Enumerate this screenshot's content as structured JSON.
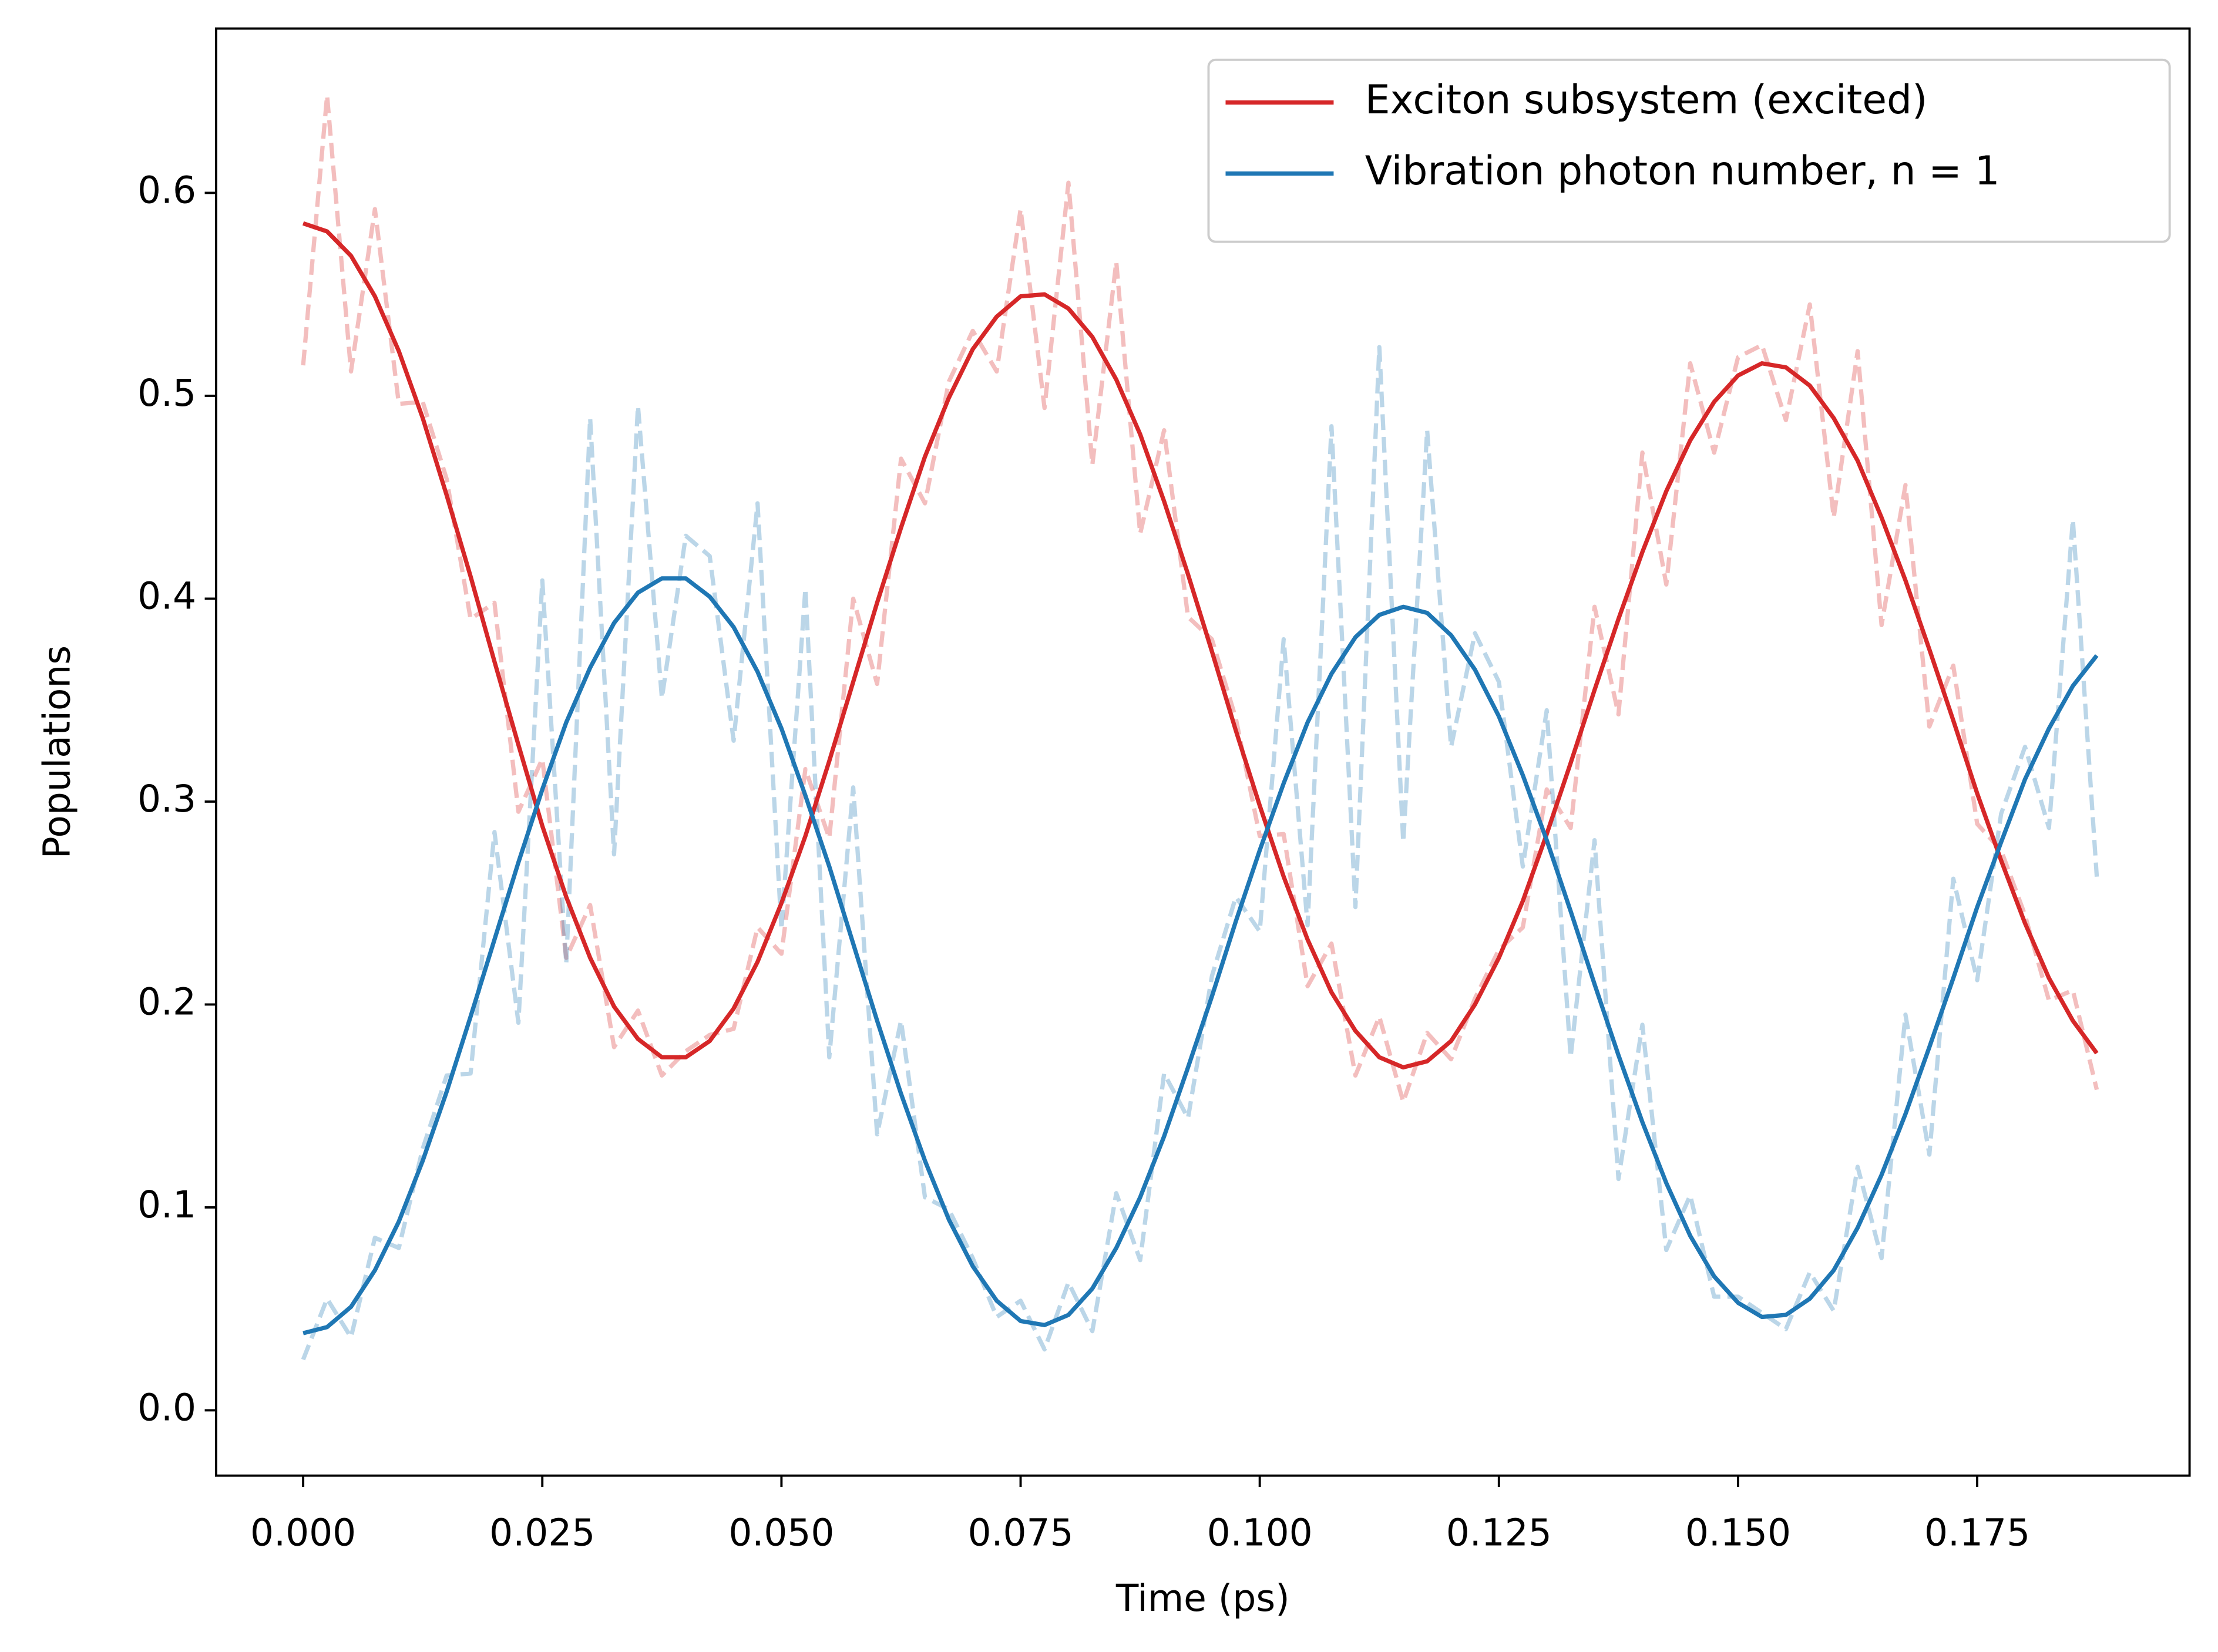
{
  "chart_data": {
    "type": "line",
    "xlabel": "Time (ps)",
    "ylabel": "Populations",
    "xlim": [
      -0.0091,
      0.1972
    ],
    "ylim": [
      -0.0322,
      0.681
    ],
    "xticks": [
      {
        "value": 0,
        "label": "0.000"
      },
      0.025,
      {
        "value": 0.05,
        "label": "0.050"
      },
      0.075,
      {
        "value": 0.1,
        "label": "0.100"
      },
      0.125,
      {
        "value": 0.15,
        "label": "0.150"
      },
      0.175
    ],
    "yticks": [
      {
        "value": 0,
        "label": "0.0"
      },
      0.1,
      0.2,
      0.3,
      0.4,
      0.5,
      0.6
    ],
    "grid": false,
    "legend_loc": "upper right",
    "x": [
      0,
      0.0025,
      0.005,
      0.0075,
      0.01,
      0.0125,
      0.015,
      0.0175,
      0.02,
      0.0225,
      0.025,
      0.0275,
      0.03,
      0.0325,
      0.035,
      0.0375,
      0.04,
      0.0425,
      0.045,
      0.0475,
      0.05,
      0.0525,
      0.055,
      0.0575,
      0.06,
      0.0625,
      0.065,
      0.0675,
      0.07,
      0.0725,
      0.075,
      0.0775,
      0.08,
      0.0825,
      0.085,
      0.0875,
      0.09,
      0.0925,
      0.095,
      0.0975,
      0.1,
      0.1025,
      0.105,
      0.1075,
      0.11,
      0.1125,
      0.115,
      0.1175,
      0.12,
      0.1225,
      0.125,
      0.1275,
      0.13,
      0.1325,
      0.135,
      0.1375,
      0.14,
      0.1425,
      0.145,
      0.1475,
      0.15,
      0.1525,
      0.155,
      0.1575,
      0.16,
      0.1625,
      0.165,
      0.1675,
      0.17,
      0.1725,
      0.175,
      0.1775,
      0.18,
      0.1825,
      0.185,
      0.1875
    ],
    "series": [
      {
        "color": "#d62728",
        "linestyle": "dashed",
        "alpha": 0.3,
        "values": [
          0.515,
          0.648,
          0.512,
          0.592,
          0.496,
          0.497,
          0.459,
          0.39,
          0.398,
          0.295,
          0.321,
          0.223,
          0.249,
          0.179,
          0.197,
          0.165,
          0.177,
          0.185,
          0.188,
          0.238,
          0.225,
          0.316,
          0.282,
          0.4,
          0.358,
          0.469,
          0.447,
          0.507,
          0.532,
          0.512,
          0.592,
          0.494,
          0.605,
          0.466,
          0.566,
          0.432,
          0.483,
          0.391,
          0.38,
          0.341,
          0.283,
          0.284,
          0.209,
          0.23,
          0.165,
          0.194,
          0.152,
          0.186,
          0.173,
          0.203,
          0.227,
          0.238,
          0.306,
          0.287,
          0.396,
          0.343,
          0.472,
          0.407,
          0.516,
          0.472,
          0.519,
          0.525,
          0.488,
          0.545,
          0.44,
          0.522,
          0.387,
          0.456,
          0.337,
          0.367,
          0.289,
          0.276,
          0.244,
          0.202,
          0.207,
          0.158
        ]
      },
      {
        "color": "#1f77b4",
        "linestyle": "dashed",
        "alpha": 0.3,
        "values": [
          0.025,
          0.055,
          0.036,
          0.085,
          0.08,
          0.129,
          0.165,
          0.166,
          0.285,
          0.191,
          0.409,
          0.22,
          0.489,
          0.274,
          0.495,
          0.351,
          0.431,
          0.421,
          0.33,
          0.447,
          0.237,
          0.405,
          0.174,
          0.307,
          0.136,
          0.192,
          0.105,
          0.099,
          0.075,
          0.046,
          0.054,
          0.03,
          0.063,
          0.039,
          0.107,
          0.074,
          0.166,
          0.144,
          0.214,
          0.253,
          0.236,
          0.38,
          0.239,
          0.485,
          0.248,
          0.524,
          0.28,
          0.483,
          0.327,
          0.383,
          0.359,
          0.268,
          0.345,
          0.174,
          0.281,
          0.114,
          0.19,
          0.079,
          0.106,
          0.056,
          0.056,
          0.048,
          0.04,
          0.068,
          0.049,
          0.12,
          0.075,
          0.195,
          0.126,
          0.262,
          0.212,
          0.294,
          0.327,
          0.287,
          0.439,
          0.263
        ]
      },
      {
        "name": "Exciton subsystem (excited)",
        "color": "#d62728",
        "linestyle": "solid",
        "alpha": 1,
        "values": [
          0.585,
          0.581,
          0.569,
          0.549,
          0.522,
          0.489,
          0.451,
          0.411,
          0.369,
          0.328,
          0.288,
          0.253,
          0.223,
          0.199,
          0.183,
          0.174,
          0.174,
          0.182,
          0.198,
          0.221,
          0.25,
          0.283,
          0.32,
          0.359,
          0.398,
          0.435,
          0.47,
          0.499,
          0.523,
          0.539,
          0.549,
          0.55,
          0.543,
          0.529,
          0.508,
          0.481,
          0.448,
          0.412,
          0.374,
          0.335,
          0.298,
          0.263,
          0.232,
          0.206,
          0.187,
          0.174,
          0.169,
          0.172,
          0.182,
          0.2,
          0.223,
          0.251,
          0.284,
          0.319,
          0.355,
          0.39,
          0.423,
          0.453,
          0.478,
          0.497,
          0.51,
          0.516,
          0.514,
          0.505,
          0.489,
          0.468,
          0.44,
          0.409,
          0.375,
          0.34,
          0.304,
          0.271,
          0.24,
          0.213,
          0.192,
          0.176
        ]
      },
      {
        "name": "Vibration photon number, n = 1",
        "color": "#1f77b4",
        "linestyle": "solid",
        "alpha": 1,
        "values": [
          0.038,
          0.041,
          0.051,
          0.069,
          0.093,
          0.123,
          0.157,
          0.194,
          0.232,
          0.27,
          0.306,
          0.339,
          0.366,
          0.388,
          0.403,
          0.41,
          0.41,
          0.401,
          0.386,
          0.364,
          0.336,
          0.303,
          0.268,
          0.23,
          0.192,
          0.156,
          0.123,
          0.094,
          0.071,
          0.054,
          0.044,
          0.042,
          0.047,
          0.06,
          0.08,
          0.105,
          0.135,
          0.169,
          0.204,
          0.241,
          0.276,
          0.309,
          0.339,
          0.363,
          0.381,
          0.392,
          0.396,
          0.393,
          0.382,
          0.365,
          0.342,
          0.313,
          0.281,
          0.246,
          0.21,
          0.175,
          0.142,
          0.112,
          0.086,
          0.066,
          0.053,
          0.046,
          0.047,
          0.055,
          0.069,
          0.09,
          0.116,
          0.146,
          0.179,
          0.213,
          0.248,
          0.28,
          0.311,
          0.336,
          0.357,
          0.372
        ]
      }
    ]
  }
}
